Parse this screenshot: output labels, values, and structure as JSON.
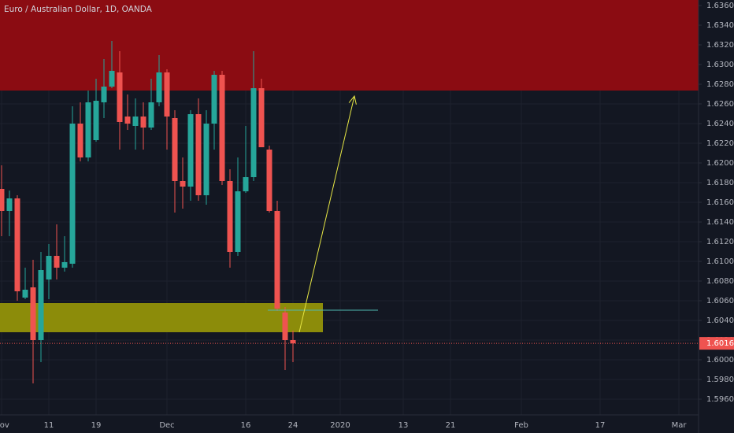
{
  "chart_data": {
    "type": "candlestick",
    "title": "Euro / Australian Dollar, 1D, OANDA",
    "categories": [
      "Nov",
      null,
      null,
      null,
      null,
      null,
      "11",
      null,
      null,
      null,
      null,
      null,
      "19",
      null,
      null,
      null,
      null,
      null,
      null,
      null,
      null,
      "Dec",
      null,
      null,
      null,
      null,
      null,
      null,
      null,
      null,
      null,
      "16",
      null,
      null,
      null,
      null,
      null,
      "24",
      null,
      null,
      null,
      null,
      null,
      "2020",
      null,
      null,
      null,
      null,
      null,
      null,
      null,
      "13",
      null,
      null,
      null,
      null,
      null,
      "21",
      null,
      null,
      null,
      null,
      null,
      null,
      null,
      null,
      "Feb",
      null,
      null,
      null,
      null,
      null,
      null,
      null,
      null,
      null,
      "17",
      null,
      null,
      null,
      null,
      null,
      null,
      null,
      null,
      null,
      "Mar"
    ],
    "open": [
      1.61736,
      1.61512,
      1.6164,
      1.60632,
      1.60736,
      1.602,
      1.60816,
      1.61056,
      1.60936,
      1.60976,
      1.624,
      1.62056,
      1.62232,
      1.62616,
      1.62776,
      1.6292,
      1.62472,
      1.62376,
      1.62472,
      1.6236,
      1.62616,
      1.6292,
      1.62456,
      1.61816,
      1.6176,
      1.62496,
      1.61672,
      1.624,
      1.62896,
      1.61816,
      1.61096,
      1.61712,
      1.61856,
      1.6276,
      1.62136,
      1.61512,
      1.6048,
      1.602,
      null,
      null,
      null,
      null,
      null,
      null,
      null,
      null,
      null,
      null,
      null,
      null,
      null,
      null,
      null,
      null,
      null,
      null,
      null,
      null,
      null,
      null,
      null,
      null,
      null,
      null,
      null,
      null,
      null,
      null,
      null,
      null,
      null,
      null,
      null,
      null,
      null,
      null,
      null,
      null,
      null,
      null,
      null,
      null,
      null,
      null,
      null,
      null,
      null
    ],
    "high": [
      1.61976,
      1.6172,
      1.61672,
      1.60936,
      1.61016,
      1.61096,
      1.61176,
      1.61376,
      1.61256,
      1.62576,
      1.62616,
      1.62736,
      1.62856,
      1.63056,
      1.6324,
      1.63136,
      1.62696,
      1.62656,
      1.62616,
      1.62856,
      1.63096,
      1.62952,
      1.62536,
      1.62056,
      1.62536,
      1.62656,
      1.62536,
      1.62936,
      1.62936,
      1.61936,
      1.62056,
      1.62376,
      1.63136,
      1.62856,
      1.62176,
      1.61616,
      1.60536,
      1.60296,
      null,
      null,
      null,
      null,
      null,
      null,
      null,
      null,
      null,
      null,
      null,
      null,
      null,
      null,
      null,
      null,
      null,
      null,
      null,
      null,
      null,
      null,
      null,
      null,
      null,
      null,
      null,
      null,
      null,
      null,
      null,
      null,
      null,
      null,
      null,
      null,
      null,
      null,
      null,
      null,
      null,
      null,
      null,
      null,
      null,
      null,
      null,
      null,
      null
    ],
    "low": [
      1.61256,
      1.61256,
      1.606,
      1.60616,
      1.5976,
      1.59976,
      1.60616,
      1.60816,
      1.60896,
      1.60936,
      1.62016,
      1.62016,
      1.62216,
      1.62456,
      1.6276,
      1.62136,
      1.62336,
      1.62136,
      1.62136,
      1.62336,
      1.62576,
      1.62136,
      1.61496,
      1.61536,
      1.61616,
      1.61616,
      1.61576,
      1.62136,
      1.61776,
      1.60936,
      1.61056,
      1.61696,
      1.61816,
      1.6216,
      1.61496,
      1.60496,
      1.59896,
      1.59976,
      null,
      null,
      null,
      null,
      null,
      null,
      null,
      null,
      null,
      null,
      null,
      null,
      null,
      null,
      null,
      null,
      null,
      null,
      null,
      null,
      null,
      null,
      null,
      null,
      null,
      null,
      null,
      null,
      null,
      null,
      null,
      null,
      null,
      null,
      null,
      null,
      null,
      null,
      null,
      null,
      null,
      null,
      null,
      null,
      null,
      null,
      null,
      null,
      null
    ],
    "close": [
      1.61512,
      1.6164,
      1.60696,
      1.60712,
      1.602,
      1.60912,
      1.61056,
      1.60936,
      1.60992,
      1.624,
      1.62056,
      1.62616,
      1.62632,
      1.62776,
      1.62936,
      1.62416,
      1.624,
      1.62472,
      1.6236,
      1.62616,
      1.6292,
      1.62472,
      1.61816,
      1.6176,
      1.62496,
      1.61672,
      1.624,
      1.62896,
      1.61816,
      1.61096,
      1.61712,
      1.61856,
      1.6276,
      1.6216,
      1.61512,
      1.6052,
      1.602,
      1.60167,
      null,
      null,
      null,
      null,
      null,
      null,
      null,
      null,
      null,
      null,
      null,
      null,
      null,
      null,
      null,
      null,
      null,
      null,
      null,
      null,
      null,
      null,
      null,
      null,
      null,
      null,
      null,
      null,
      null,
      null,
      null,
      null,
      null,
      null,
      null,
      null,
      null,
      null,
      null,
      null,
      null,
      null,
      null,
      null,
      null,
      null,
      null,
      null,
      null
    ],
    "up_color": "#26a69a",
    "down_color": "#ef5350",
    "ylim": [
      1.5944,
      1.63656
    ],
    "yticks": [
      {
        "value": 1.596,
        "label": "1.59600"
      },
      {
        "value": 1.598,
        "label": "1.59800"
      },
      {
        "value": 1.6,
        "label": "1.60000"
      },
      {
        "value": 1.602,
        "label": "1.60200"
      },
      {
        "value": 1.604,
        "label": "1.60400"
      },
      {
        "value": 1.606,
        "label": "1.60600"
      },
      {
        "value": 1.608,
        "label": "1.60800"
      },
      {
        "value": 1.61,
        "label": "1.61000"
      },
      {
        "value": 1.612,
        "label": "1.61200"
      },
      {
        "value": 1.614,
        "label": "1.61400"
      },
      {
        "value": 1.616,
        "label": "1.61600"
      },
      {
        "value": 1.618,
        "label": "1.61800"
      },
      {
        "value": 1.62,
        "label": "1.62000"
      },
      {
        "value": 1.622,
        "label": "1.62200"
      },
      {
        "value": 1.624,
        "label": "1.62400"
      },
      {
        "value": 1.626,
        "label": "1.62600"
      },
      {
        "value": 1.628,
        "label": "1.62800"
      },
      {
        "value": 1.63,
        "label": "1.63000"
      },
      {
        "value": 1.632,
        "label": "1.63200"
      },
      {
        "value": 1.634,
        "label": "1.63400"
      },
      {
        "value": 1.636,
        "label": "1.63600"
      }
    ],
    "grid": true,
    "zones": [
      {
        "color": "#8b0c12",
        "price": [
          1.62736,
          1.63656
        ]
      },
      {
        "color": "#8c8c0a",
        "price": [
          1.6028,
          1.60576
        ],
        "x": [
          -0.2,
          40.8
        ]
      }
    ],
    "lines": [
      {
        "color": "#4fb8b0",
        "price": 1.60504,
        "x": [
          33.8,
          47.8
        ]
      }
    ],
    "arrow": {
      "color": "#e6e645",
      "x": [
        37.8,
        44.8
      ],
      "price": [
        1.6028,
        1.6268
      ]
    }
  }
}
